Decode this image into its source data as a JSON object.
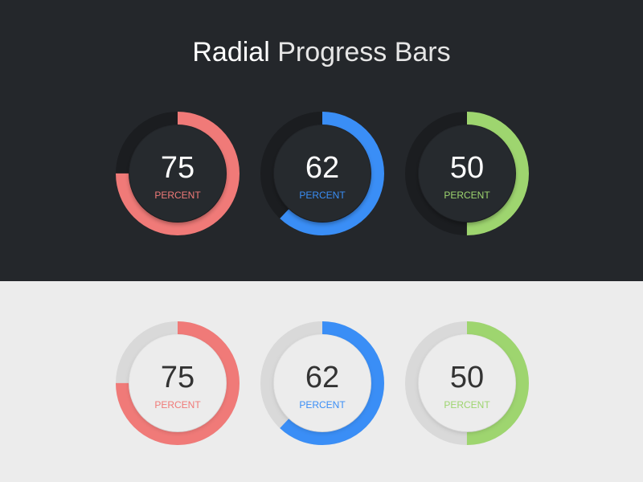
{
  "header": {
    "title": [
      "Radial",
      "Progress Bars"
    ]
  },
  "panels": [
    {
      "theme": "dark",
      "dials": [
        {
          "value": 75,
          "label": "PERCENT",
          "color": "#f07a78"
        },
        {
          "value": 62,
          "label": "PERCENT",
          "color": "#3a8ef6"
        },
        {
          "value": 50,
          "label": "PERCENT",
          "color": "#9ed56f"
        }
      ]
    },
    {
      "theme": "light",
      "dials": [
        {
          "value": 75,
          "label": "PERCENT",
          "color": "#f07a78"
        },
        {
          "value": 62,
          "label": "PERCENT",
          "color": "#3a8ef6"
        },
        {
          "value": 50,
          "label": "PERCENT",
          "color": "#9ed56f"
        }
      ]
    }
  ]
}
